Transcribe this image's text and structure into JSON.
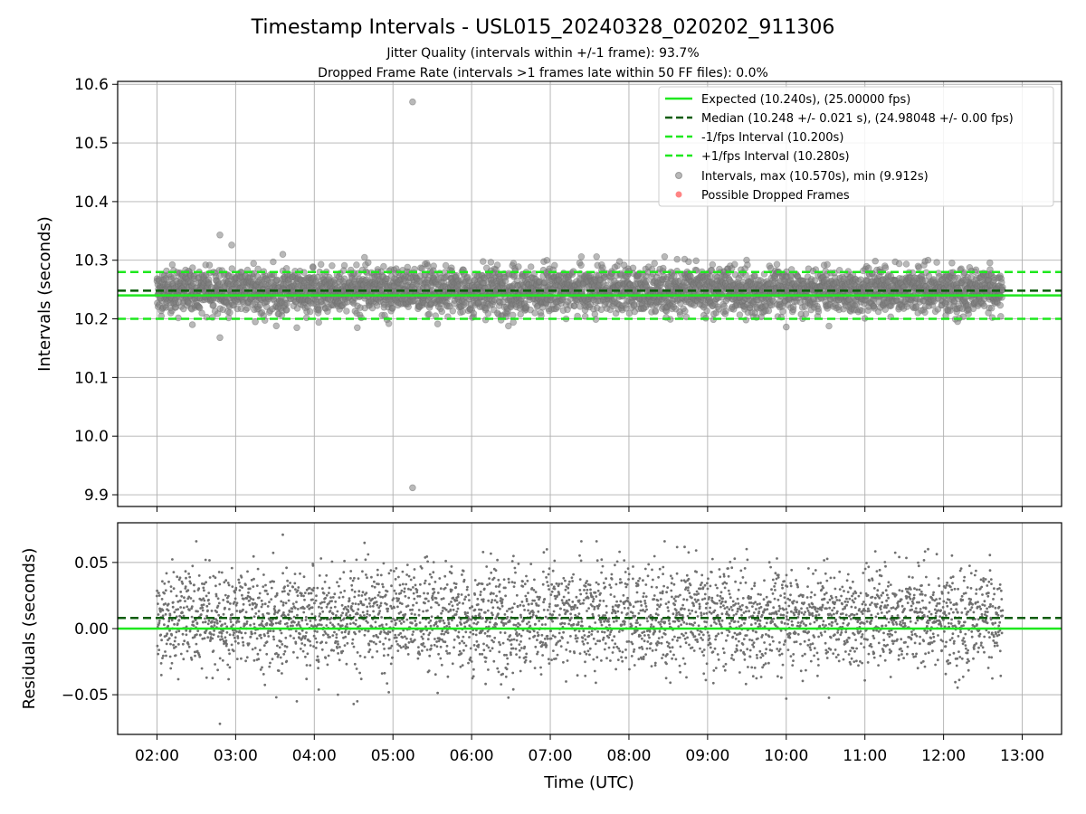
{
  "chart_data": [
    {
      "type": "scatter",
      "title": "Timestamp Intervals - USL015_20240328_020202_911306",
      "subtitle_lines": [
        "Jitter Quality (intervals within +/-1 frame): 93.7%",
        "Dropped Frame Rate (intervals >1 frames late within 50 FF files): 0.0%"
      ],
      "ylabel": "Intervals (seconds)",
      "xlim": [
        1.5,
        13.5
      ],
      "ylim": [
        9.88,
        10.605
      ],
      "yticks": [
        9.9,
        10.0,
        10.1,
        10.2,
        10.3,
        10.4,
        10.5,
        10.6
      ],
      "ytick_labels": [
        "9.9",
        "10.0",
        "10.1",
        "10.2",
        "10.3",
        "10.4",
        "10.5",
        "10.6"
      ],
      "grid": true,
      "legend_position": "top-right",
      "reference_lines": [
        {
          "name": "Expected (10.240s), (25.00000 fps)",
          "y": 10.24,
          "style": "solid",
          "color": "#1ee81e"
        },
        {
          "name": "Median (10.248 +/- 0.021 s), (24.98048 +/- 0.00 fps)",
          "y": 10.248,
          "style": "dashed",
          "color": "#0a5c0a"
        },
        {
          "name": "-1/fps Interval (10.200s)",
          "y": 10.2,
          "style": "dashed",
          "color": "#1ee81e"
        },
        {
          "name": "+1/fps Interval (10.280s)",
          "y": 10.28,
          "style": "dashed",
          "color": "#1ee81e"
        }
      ],
      "scatter_series": [
        {
          "name": "Intervals, max (10.570s), min (9.912s)",
          "color": "#808080",
          "alpha": 0.55,
          "max": 10.57,
          "min": 9.912,
          "outliers": [
            [
              5.25,
              10.57
            ],
            [
              5.25,
              9.912
            ],
            [
              2.8,
              10.343
            ],
            [
              2.95,
              10.326
            ],
            [
              2.8,
              10.168
            ],
            [
              3.6,
              10.31
            ],
            [
              2.45,
              10.19
            ],
            [
              10.0,
              10.186
            ],
            [
              3.25,
              10.195
            ]
          ]
        },
        {
          "name": "Possible Dropped Frames",
          "color": "#ff5050",
          "alpha": 0.7,
          "points": []
        }
      ],
      "x_range_of_points": [
        2.0,
        12.75
      ],
      "point_count": 3800
    },
    {
      "type": "scatter",
      "xlabel": "Time (UTC)",
      "ylabel": "Residuals (seconds)",
      "xlim": [
        1.5,
        13.5
      ],
      "ylim": [
        -0.08,
        0.08
      ],
      "yticks": [
        -0.05,
        0.0,
        0.05
      ],
      "ytick_labels": [
        "−0.05",
        "0.00",
        "0.05"
      ],
      "xticks": [
        2,
        3,
        4,
        5,
        6,
        7,
        8,
        9,
        10,
        11,
        12,
        13
      ],
      "xtick_labels": [
        "02:00",
        "03:00",
        "04:00",
        "05:00",
        "06:00",
        "07:00",
        "08:00",
        "09:00",
        "10:00",
        "11:00",
        "12:00",
        "13:00"
      ],
      "grid": true,
      "reference_lines": [
        {
          "y": 0.0,
          "style": "solid",
          "color": "#1ee81e"
        },
        {
          "y": 0.008,
          "style": "dashed",
          "color": "#0a5c0a"
        }
      ],
      "residual_range": [
        -0.072,
        0.071
      ],
      "point_count": 3800,
      "point_color": "#707070"
    }
  ]
}
